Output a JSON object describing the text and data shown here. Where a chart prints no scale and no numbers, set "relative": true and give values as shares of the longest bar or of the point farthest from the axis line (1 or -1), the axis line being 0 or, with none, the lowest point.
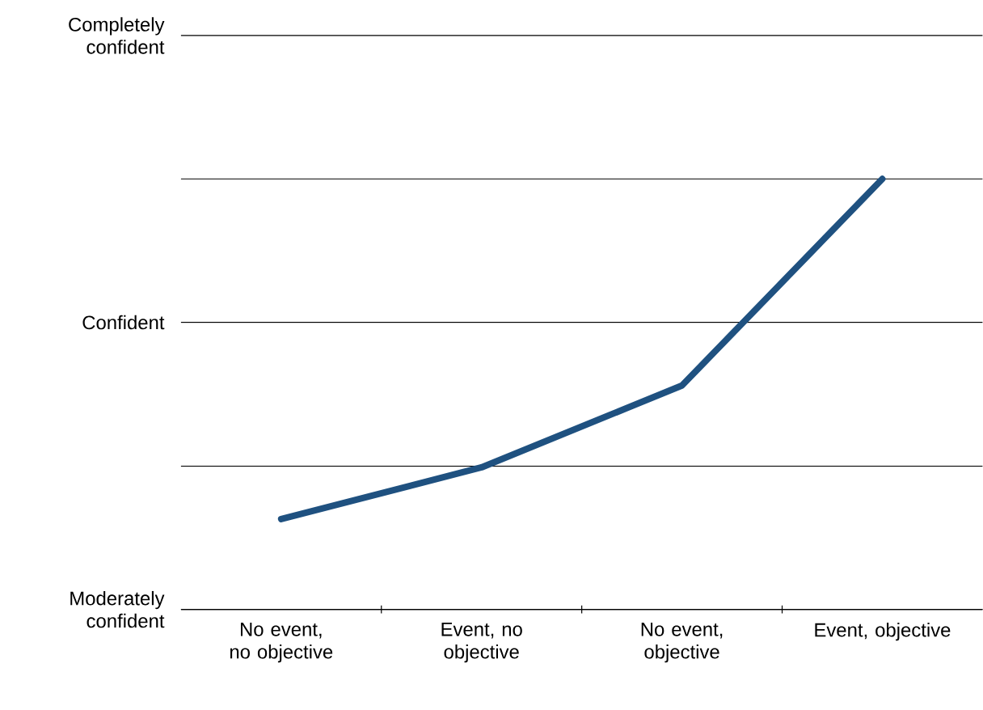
{
  "chart_data": {
    "type": "line",
    "relative": true,
    "categories": [
      "No event, no objective",
      "Event, no objective",
      "No event, objective",
      "Event, objective"
    ],
    "series": [
      {
        "color": "#1f5180",
        "values": [
          0.21,
          0.33,
          0.52,
          1
        ]
      }
    ],
    "ref_lines": [
      {
        "axis": "y",
        "value": 0,
        "label": "Moderately confident",
        "color": "#000000"
      },
      {
        "axis": "y",
        "value": 0.333,
        "color": "#000000"
      },
      {
        "axis": "y",
        "value": 0.667,
        "label": "Confident",
        "color": "#000000"
      },
      {
        "axis": "y",
        "value": 1,
        "color": "#000000"
      },
      {
        "axis": "y",
        "value": 1.333,
        "label": "Completely confident",
        "color": "#000000"
      }
    ]
  }
}
